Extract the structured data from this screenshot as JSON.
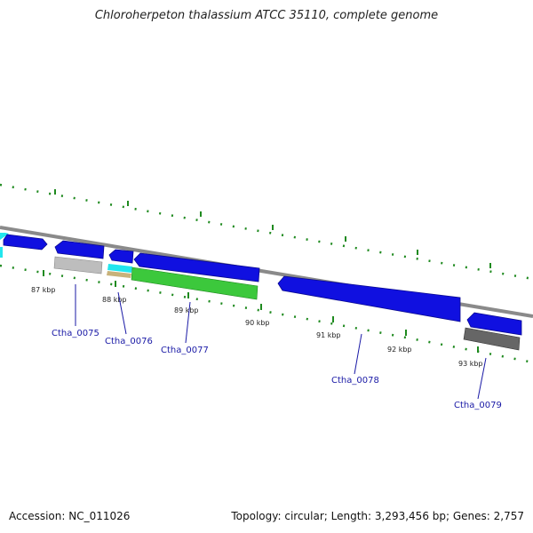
{
  "title": "Chloroherpeton thalassium ATCC 35110, complete genome",
  "footer": {
    "accession": "Accession: NC_011026",
    "summary": "Topology: circular; Length: 3,293,456 bp; Genes: 2,757"
  },
  "colors": {
    "backbone": "#8a8a8a",
    "tick": "#1f8a1f",
    "gene_label": "#1a1aa6",
    "forward_gene": "#1010e0",
    "cyan_gene": "#22e6ee",
    "light_gray_gene": "#bdbdbd",
    "dark_gray_gene": "#666666",
    "tan_gene": "#c8b27a",
    "green_gene": "#3cc83c"
  },
  "scale_labels": [
    "87 kbp",
    "88 kbp",
    "89 kbp",
    "90 kbp",
    "91 kbp",
    "92 kbp",
    "93 kbp"
  ],
  "gene_labels": [
    "Ctha_0075",
    "Ctha_0076",
    "Ctha_0077",
    "Ctha_0078",
    "Ctha_0079"
  ]
}
